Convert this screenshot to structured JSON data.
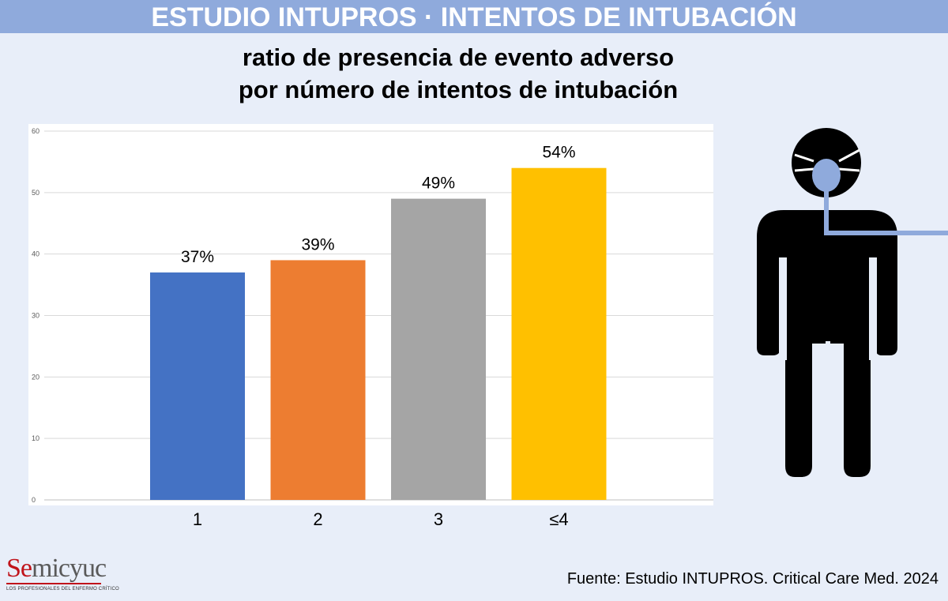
{
  "header": {
    "banner": "ESTUDIO INTUPROS · INTENTOS DE INTUBACIÓN",
    "subtitle_line1": "ratio de presencia de evento adverso",
    "subtitle_line2": "por número de intentos de intubación"
  },
  "chart_data": {
    "type": "bar",
    "categories": [
      "1",
      "2",
      "3",
      "≤4"
    ],
    "values": [
      37,
      39,
      49,
      54
    ],
    "data_labels": [
      "37%",
      "39%",
      "49%",
      "54%"
    ],
    "colors": [
      "#4472c4",
      "#ed7d31",
      "#a5a5a5",
      "#ffc000"
    ],
    "ylim": [
      0,
      60
    ],
    "yticks": [
      0,
      10,
      20,
      30,
      40,
      50,
      60
    ],
    "grid": true,
    "xlabel": "",
    "ylabel": ""
  },
  "footer": {
    "source": "Fuente: Estudio INTUPROS. Critical Care Med. 2024",
    "logo_text_1": "Se",
    "logo_text_2": "micyuc",
    "logo_tagline": "LOS PROFESIONALES DEL ENFERMO CRÍTICO"
  },
  "illustration": {
    "icon": "intubated-patient-icon",
    "tube_color": "#8faadc"
  }
}
